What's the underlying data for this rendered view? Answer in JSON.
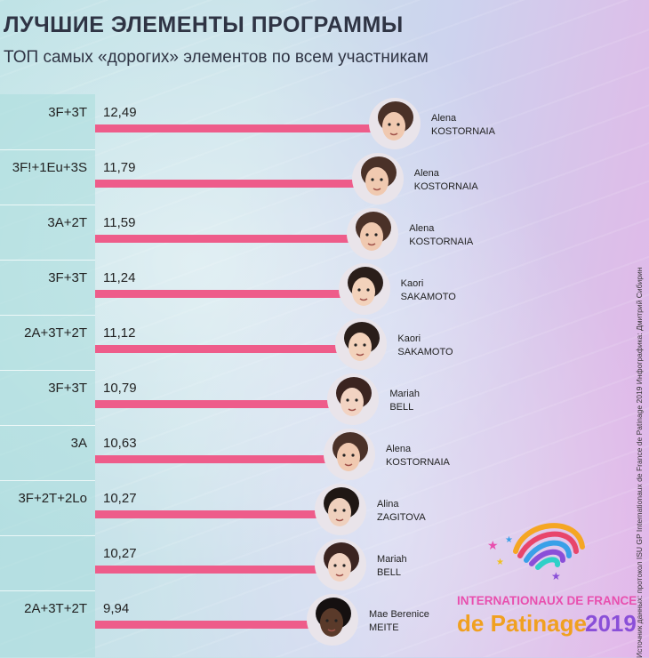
{
  "title": "ЛУЧШИЕ ЭЛЕМЕНТЫ ПРОГРАММЫ",
  "subtitle": "ТОП самых «дорогих» элементов по всем участникам",
  "source": "Источник данных: протокол ISU GP Internationaux de France de Patinage 2019 Инфографика: Дмитрий Сибирин",
  "logo": {
    "line1": "INTERNATIONAUX DE FRANCE",
    "line2": "de Patinage",
    "year": "2019"
  },
  "colors": {
    "bar": "#ee5c8a",
    "title": "#2f3444"
  },
  "chart_data": {
    "type": "bar",
    "orientation": "horizontal",
    "categories": [
      "3F+3T",
      "3F!+1Eu+3S",
      "3A+2T",
      "3F+3T",
      "2A+3T+2T",
      "3F+3T",
      "3A",
      "3F+2T+2Lo",
      "",
      "2A+3T+2T"
    ],
    "values": [
      12.49,
      11.79,
      11.59,
      11.24,
      11.12,
      10.79,
      10.63,
      10.27,
      10.27,
      9.94
    ],
    "value_labels": [
      "12,49",
      "11,79",
      "11,59",
      "11,24",
      "11,12",
      "10,79",
      "10,63",
      "10,27",
      "10,27",
      "9,94"
    ],
    "athletes": [
      {
        "first": "Alena",
        "last": "KOSTORNAIA",
        "skin": "#f0c9b0",
        "hair": "#4a3128"
      },
      {
        "first": "Alena",
        "last": "KOSTORNAIA",
        "skin": "#f0c9b0",
        "hair": "#4a3128"
      },
      {
        "first": "Alena",
        "last": "KOSTORNAIA",
        "skin": "#f0c9b0",
        "hair": "#4a3128"
      },
      {
        "first": "Kaori",
        "last": "SAKAMOTO",
        "skin": "#f3d2bb",
        "hair": "#2a1e1a"
      },
      {
        "first": "Kaori",
        "last": "SAKAMOTO",
        "skin": "#f3d2bb",
        "hair": "#2a1e1a"
      },
      {
        "first": "Mariah",
        "last": "BELL",
        "skin": "#f2d3c2",
        "hair": "#3b2420"
      },
      {
        "first": "Alena",
        "last": "KOSTORNAIA",
        "skin": "#f0c9b0",
        "hair": "#4a3128"
      },
      {
        "first": "Alina",
        "last": "ZAGITOVA",
        "skin": "#efd0bd",
        "hair": "#1f1714"
      },
      {
        "first": "Mariah",
        "last": "BELL",
        "skin": "#f2d3c2",
        "hair": "#3b2420"
      },
      {
        "first": "Mae Berenice",
        "last": "MEITE",
        "skin": "#5a3a2a",
        "hair": "#151010"
      }
    ]
  }
}
